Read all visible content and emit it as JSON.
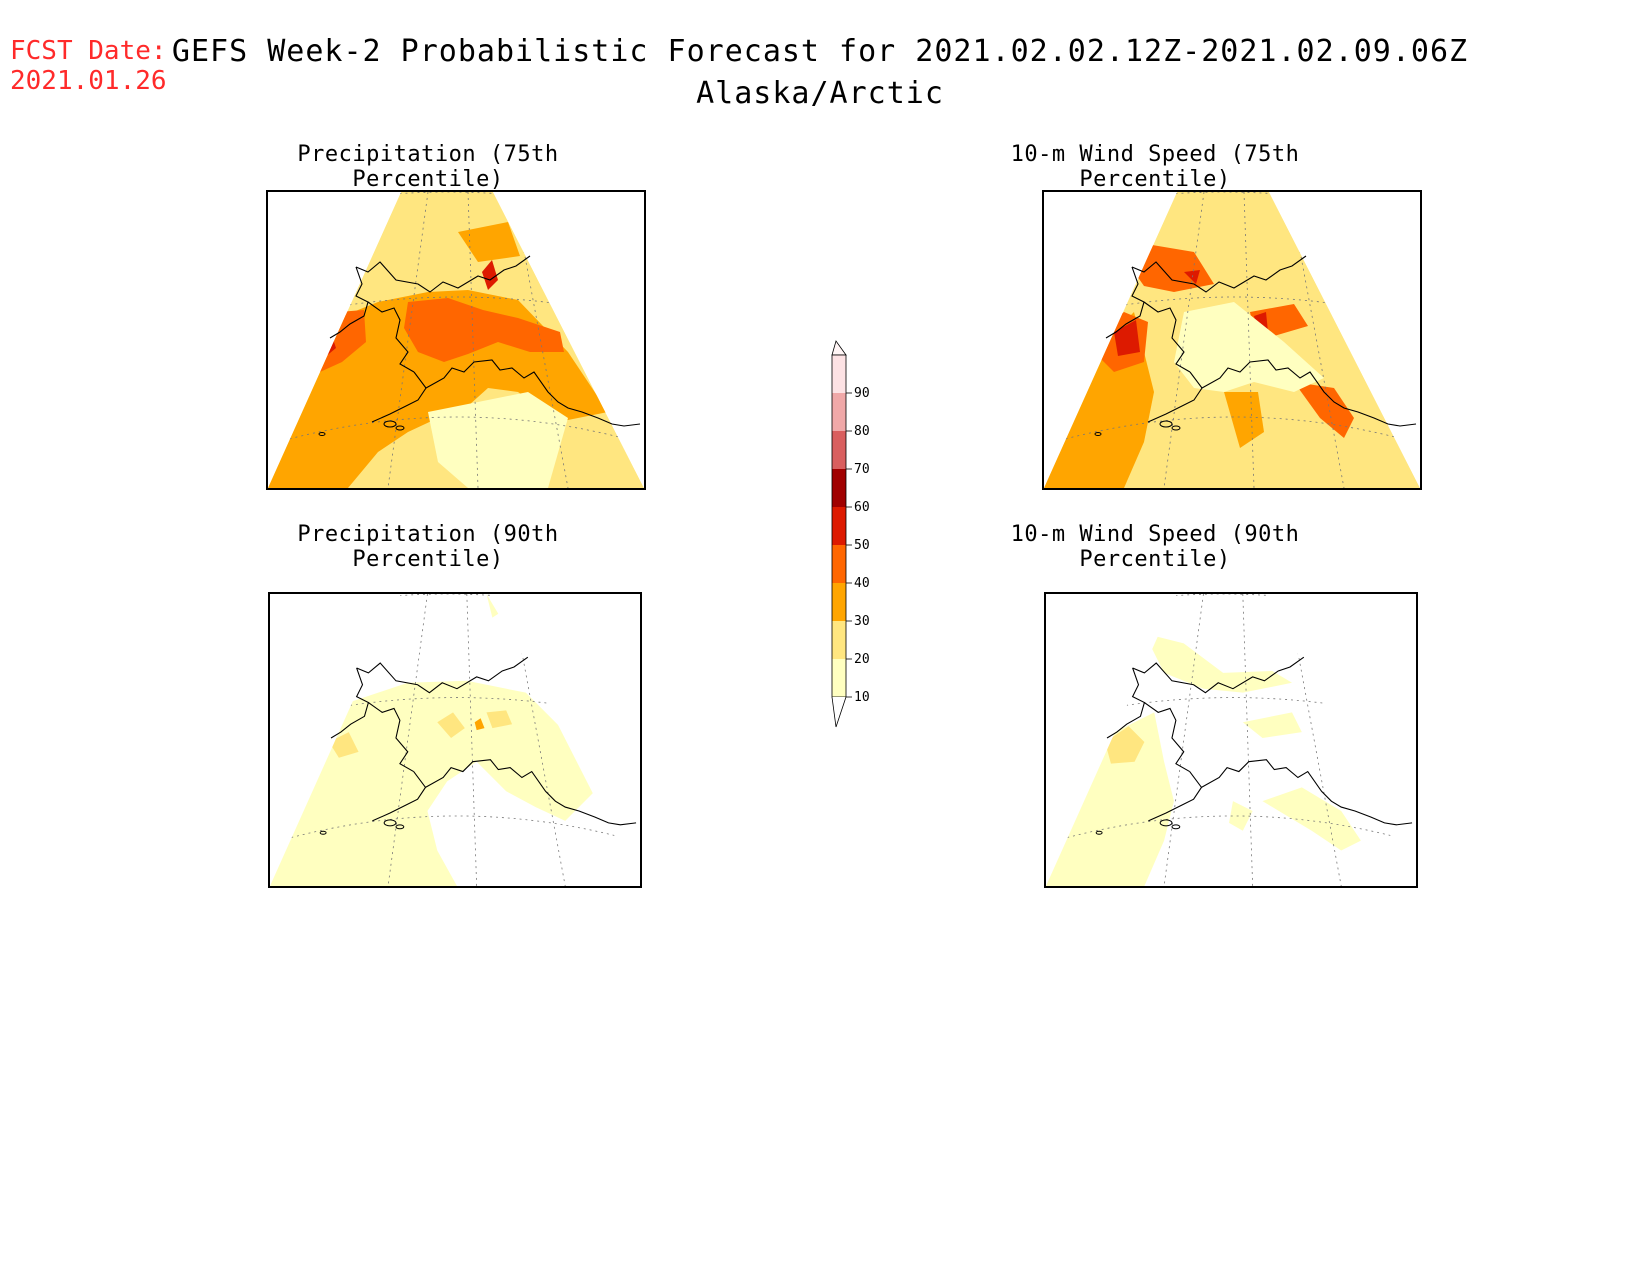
{
  "header": {
    "fcst_label": "FCST Date:",
    "fcst_date": "2021.01.26",
    "title": "GEFS Week-2 Probabilistic Forecast for 2021.02.02.12Z-2021.02.09.06Z",
    "region": "Alaska/Arctic"
  },
  "panels": [
    {
      "title": "Precipitation (75th Percentile)",
      "style": "precip75"
    },
    {
      "title": "10-m Wind Speed (75th Percentile)",
      "style": "wind75"
    },
    {
      "title": "Precipitation (90th Percentile)",
      "style": "precip90"
    },
    {
      "title": "10-m Wind Speed (90th Percentile)",
      "style": "wind90"
    }
  ],
  "colorbar": {
    "levels": [
      "10",
      "20",
      "30",
      "40",
      "50",
      "60",
      "70",
      "80",
      "90"
    ],
    "colors": [
      "#ffffc0",
      "#ffe680",
      "#ffa500",
      "#ff6600",
      "#dd1a00",
      "#a00000",
      "#d95f5f",
      "#f0a8a8",
      "#fde2e4"
    ]
  }
}
